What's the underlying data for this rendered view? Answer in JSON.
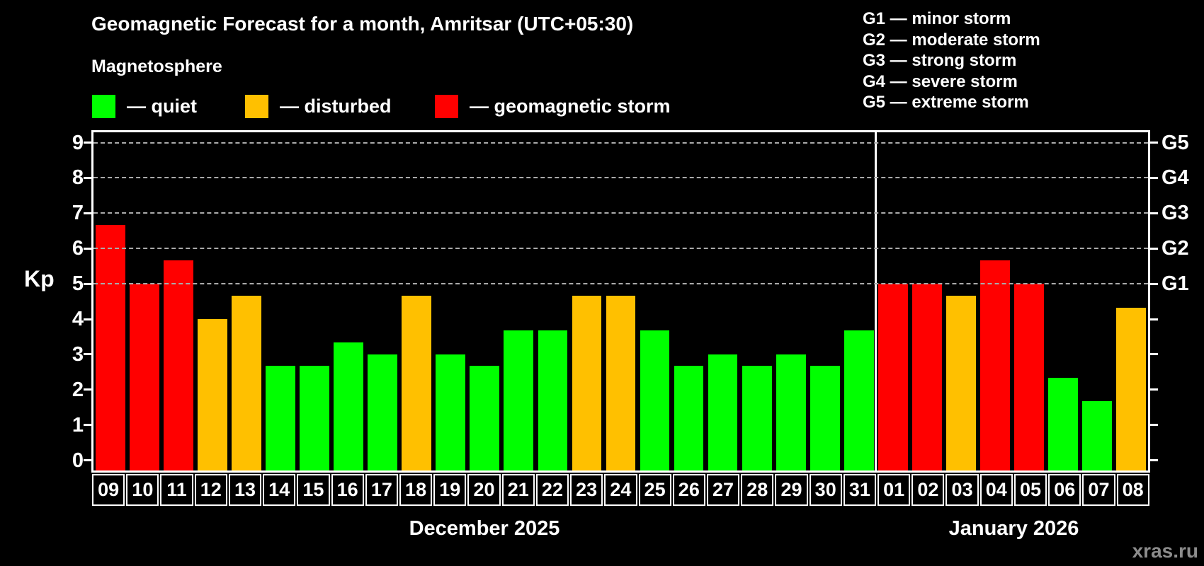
{
  "title": "Geomagnetic Forecast for a month, Amritsar (UTC+05:30)",
  "subtitle": "Magnetosphere",
  "legend": {
    "items": [
      {
        "label": "— quiet",
        "status": "quiet",
        "color": "#00ff00"
      },
      {
        "label": "— disturbed",
        "status": "disturbed",
        "color": "#ffc000"
      },
      {
        "label": "— geomagnetic storm",
        "status": "storm",
        "color": "#ff0000"
      }
    ]
  },
  "g_legend": [
    "G1 — minor storm",
    "G2 — moderate storm",
    "G3 — strong storm",
    "G4 — severe storm",
    "G5 — extreme storm"
  ],
  "months": [
    {
      "label": "December 2025",
      "span_days": 23
    },
    {
      "label": "January 2026",
      "span_days": 8
    }
  ],
  "watermark": "xras.ru",
  "colors": {
    "background": "#000000",
    "text": "#ffffff",
    "grid": "#aaaaaa",
    "axis": "#ffffff",
    "watermark": "#8c8c8c",
    "quiet": "#00ff00",
    "disturbed": "#ffc000",
    "storm": "#ff0000"
  },
  "chart_data": {
    "type": "bar",
    "title": "Geomagnetic Forecast for a month, Amritsar (UTC+05:30)",
    "xlabel": "",
    "ylabel": "Kp",
    "ylim": [
      0,
      9
    ],
    "y_ticks": [
      0,
      1,
      2,
      3,
      4,
      5,
      6,
      7,
      8,
      9
    ],
    "gridline_values": [
      5,
      6,
      7,
      8,
      9
    ],
    "grid_style": "dashed",
    "right_axis_labels": [
      {
        "value": 5,
        "label": "G1"
      },
      {
        "value": 6,
        "label": "G2"
      },
      {
        "value": 7,
        "label": "G3"
      },
      {
        "value": 8,
        "label": "G4"
      },
      {
        "value": 9,
        "label": "G5"
      }
    ],
    "legend_position": "top-left",
    "month_split_index": 23,
    "categories": [
      "09",
      "10",
      "11",
      "12",
      "13",
      "14",
      "15",
      "16",
      "17",
      "18",
      "19",
      "20",
      "21",
      "22",
      "23",
      "24",
      "25",
      "26",
      "27",
      "28",
      "29",
      "30",
      "31",
      "01",
      "02",
      "03",
      "04",
      "05",
      "06",
      "07",
      "08"
    ],
    "values": [
      6.67,
      5.0,
      5.67,
      4.0,
      4.67,
      2.67,
      2.67,
      3.33,
      3.0,
      4.67,
      3.0,
      2.67,
      3.67,
      3.67,
      4.67,
      4.67,
      3.67,
      2.67,
      3.0,
      2.67,
      3.0,
      2.67,
      3.67,
      5.0,
      5.0,
      4.67,
      5.67,
      5.0,
      2.33,
      1.67,
      4.33
    ],
    "statuses": [
      "storm",
      "storm",
      "storm",
      "disturbed",
      "disturbed",
      "quiet",
      "quiet",
      "quiet",
      "quiet",
      "disturbed",
      "quiet",
      "quiet",
      "quiet",
      "quiet",
      "disturbed",
      "disturbed",
      "quiet",
      "quiet",
      "quiet",
      "quiet",
      "quiet",
      "quiet",
      "quiet",
      "storm",
      "storm",
      "disturbed",
      "storm",
      "storm",
      "quiet",
      "quiet",
      "disturbed"
    ]
  }
}
